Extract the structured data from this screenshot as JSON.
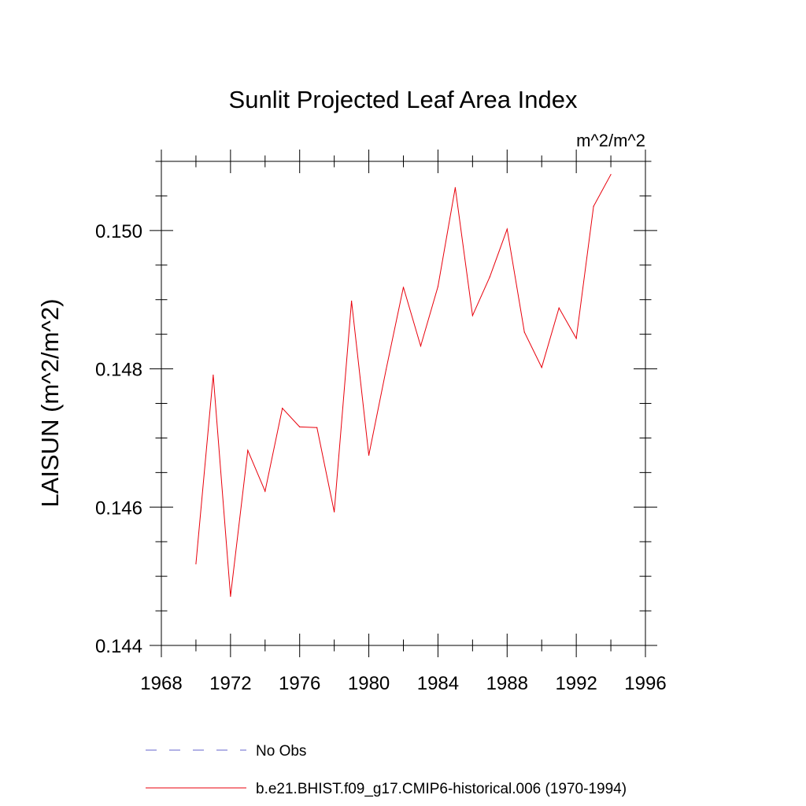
{
  "chart_data": {
    "type": "line",
    "title": "Sunlit Projected Leaf Area Index",
    "units_label": "m^2/m^2",
    "xlabel": "",
    "ylabel": "LAISUN  (m^2/m^2)",
    "xlim": [
      1968,
      1996
    ],
    "ylim": [
      0.144,
      0.151
    ],
    "x_ticks": [
      1968,
      1972,
      1976,
      1980,
      1984,
      1988,
      1992,
      1996
    ],
    "x_tick_labels": [
      "1968",
      "1972",
      "1976",
      "1980",
      "1984",
      "1988",
      "1992",
      "1996"
    ],
    "y_ticks": [
      0.144,
      0.146,
      0.148,
      0.15
    ],
    "y_tick_labels": [
      "0.144",
      "0.146",
      "0.148",
      "0.150"
    ],
    "y_minor_step": 0.0005,
    "x_minor_step": 2,
    "grid": false,
    "legend_position": "bottom",
    "series": [
      {
        "name": "b.e21.BHIST.f09_g17.CMIP6-historical.006 (1970-1994)",
        "color": "#e8000b",
        "style": "solid",
        "x": [
          1970,
          1971,
          1972,
          1973,
          1974,
          1975,
          1976,
          1977,
          1978,
          1979,
          1980,
          1981,
          1982,
          1983,
          1984,
          1985,
          1986,
          1987,
          1988,
          1989,
          1990,
          1991,
          1992,
          1993,
          1994
        ],
        "values": [
          0.14518,
          0.14791,
          0.14471,
          0.14682,
          0.14623,
          0.14743,
          0.14716,
          0.14715,
          0.14593,
          0.14898,
          0.14675,
          0.14799,
          0.14918,
          0.14833,
          0.14919,
          0.15062,
          0.14877,
          0.14933,
          0.15002,
          0.14853,
          0.14802,
          0.14888,
          0.14844,
          0.15035,
          0.15081
        ]
      },
      {
        "name": "No Obs",
        "color": "#6666cc",
        "style": "dashed",
        "x": [],
        "values": []
      }
    ]
  }
}
